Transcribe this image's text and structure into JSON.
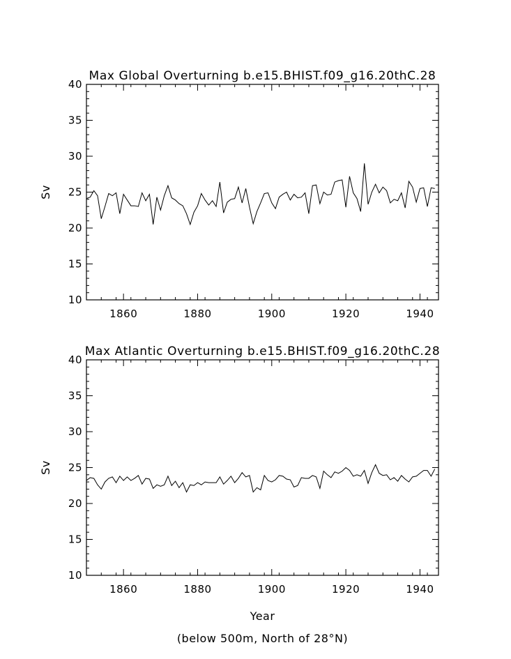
{
  "chart_data": [
    {
      "type": "line",
      "title": "Max Global Overturning b.e15.BHIST.f09_g16.20thC.28",
      "xlabel": "",
      "ylabel": "Sv",
      "xlim": [
        1850,
        1945
      ],
      "ylim": [
        10,
        40
      ],
      "xticks": [
        1860,
        1880,
        1900,
        1920,
        1940
      ],
      "yticks": [
        10,
        15,
        20,
        25,
        30,
        35,
        40
      ],
      "grid": false,
      "x_start": 1850,
      "values": [
        24.1,
        24.3,
        25.2,
        24.5,
        21.3,
        23.0,
        24.8,
        24.5,
        24.9,
        22.0,
        24.7,
        23.9,
        23.1,
        23.1,
        23.0,
        24.9,
        23.8,
        24.7,
        20.5,
        24.3,
        22.5,
        24.5,
        25.9,
        24.2,
        23.9,
        23.4,
        23.1,
        22.0,
        20.5,
        22.2,
        23.1,
        24.8,
        23.9,
        23.2,
        23.8,
        23.0,
        26.4,
        22.1,
        23.6,
        24.0,
        24.1,
        25.7,
        23.5,
        25.5,
        22.9,
        20.6,
        22.3,
        23.5,
        24.8,
        24.9,
        23.5,
        22.7,
        24.3,
        24.7,
        25.0,
        23.9,
        24.7,
        24.2,
        24.3,
        24.9,
        22.0,
        25.9,
        26.0,
        23.4,
        25.0,
        24.6,
        24.7,
        26.4,
        26.6,
        26.7,
        22.9,
        27.2,
        24.9,
        24.1,
        22.3,
        29.0,
        23.3,
        25.0,
        26.1,
        24.9,
        25.7,
        25.2,
        23.5,
        24.0,
        23.8,
        24.9,
        22.8,
        26.5,
        25.7,
        23.6,
        25.5,
        25.6,
        23.0,
        25.6,
        25.5
      ]
    },
    {
      "type": "line",
      "title": "Max Atlantic Overturning b.e15.BHIST.f09_g16.20thC.28",
      "xlabel": "Year",
      "ylabel": "Sv",
      "note": "(below 500m, North of 28°N)",
      "xlim": [
        1850,
        1945
      ],
      "ylim": [
        10,
        40
      ],
      "xticks": [
        1860,
        1880,
        1900,
        1920,
        1940
      ],
      "yticks": [
        10,
        15,
        20,
        25,
        30,
        35,
        40
      ],
      "grid": false,
      "x_start": 1850,
      "values": [
        23.2,
        23.6,
        23.5,
        22.6,
        22.0,
        23.0,
        23.5,
        23.7,
        22.9,
        23.8,
        23.2,
        23.7,
        23.2,
        23.5,
        23.9,
        22.7,
        23.5,
        23.4,
        22.1,
        22.6,
        22.4,
        22.6,
        23.8,
        22.5,
        23.1,
        22.2,
        22.9,
        21.6,
        22.6,
        22.5,
        22.9,
        22.6,
        23.0,
        22.9,
        22.9,
        22.9,
        23.7,
        22.7,
        23.2,
        23.8,
        22.9,
        23.5,
        24.3,
        23.7,
        23.9,
        21.6,
        22.2,
        21.9,
        23.9,
        23.2,
        23.0,
        23.3,
        23.9,
        23.8,
        23.4,
        23.3,
        22.3,
        22.5,
        23.6,
        23.5,
        23.5,
        23.9,
        23.7,
        22.1,
        24.5,
        24.0,
        23.6,
        24.4,
        24.2,
        24.5,
        25.0,
        24.6,
        23.8,
        24.0,
        23.8,
        24.6,
        22.8,
        24.3,
        25.4,
        24.2,
        23.9,
        24.0,
        23.3,
        23.6,
        23.1,
        23.9,
        23.4,
        23.0,
        23.7,
        23.8,
        24.2,
        24.6,
        24.6,
        23.8,
        24.8
      ]
    }
  ]
}
